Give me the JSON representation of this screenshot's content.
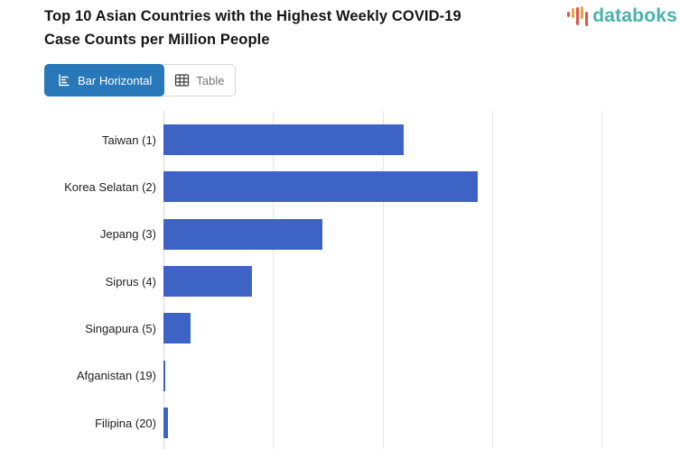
{
  "page": {
    "title_line1": "Top 10 Asian Countries with the Highest Weekly COVID-19",
    "title_line2": "Case Counts per Million People"
  },
  "brand": {
    "name": "databoks",
    "text_color": "#49b3a9",
    "icon_bar_colors": [
      "#e2544b",
      "#f0a23f",
      "#e2544b",
      "#f0a23f",
      "#e2544b"
    ]
  },
  "toolbar": {
    "buttons": [
      {
        "label": "Bar Horizontal",
        "active": true,
        "icon": "bar-horizontal-icon"
      },
      {
        "label": "Table",
        "active": false,
        "icon": "table-icon"
      }
    ]
  },
  "theme": {
    "bar_color": "#3d63c4",
    "active_button_color": "#2878b9",
    "gridline_color": "#e7e7e7",
    "axis_color": "#dadada",
    "label_color": "#212121",
    "brand_teal": "#49b3a9"
  },
  "chart_data": {
    "type": "bar",
    "orientation": "horizontal",
    "title": "Top 10 Asian Countries with the Highest Weekly COVID-19 Case Counts per Million People",
    "categories": [
      "Taiwan (1)",
      "Korea Selatan (2)",
      "Jepang (3)",
      "Siprus (4)",
      "Singapura (5)",
      "Afganistan (19)",
      "Filipina (20)"
    ],
    "values_gridline_units": [
      2.19,
      2.87,
      1.45,
      0.81,
      0.25,
      0.02,
      0.04
    ],
    "xlabel": "",
    "ylabel": "",
    "x_axis": {
      "tick_labels_visible": false,
      "gridline_count": 5,
      "xlim_gridline_units": [
        0,
        4.72
      ]
    },
    "legend": "none",
    "grid": true,
    "bar_color": "#3d63c4"
  }
}
